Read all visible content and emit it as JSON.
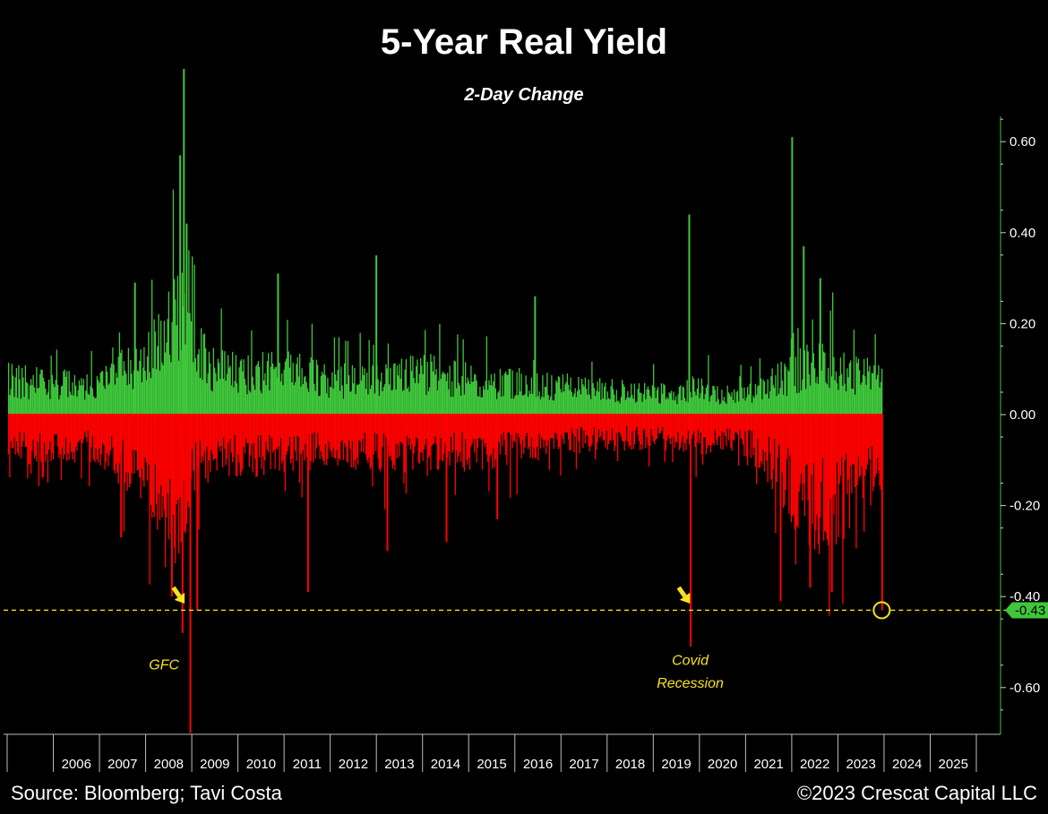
{
  "chart_data": {
    "type": "bar",
    "title": "5-Year Real Yield",
    "subtitle": "2-Day Change",
    "xlabel": "",
    "ylabel": "",
    "ylim": [
      -0.7,
      0.7
    ],
    "yticks": [
      0.6,
      0.4,
      0.2,
      0.0,
      -0.2,
      -0.4,
      -0.6
    ],
    "ytick_labels": [
      "0.60",
      "0.40",
      "0.20",
      "0.00",
      "-0.20",
      "-0.40",
      "-0.60"
    ],
    "x_range": [
      2005.0,
      2026.0
    ],
    "data_end": 2023.95,
    "categories": [
      "2006",
      "2007",
      "2008",
      "2009",
      "2010",
      "2011",
      "2012",
      "2013",
      "2014",
      "2015",
      "2016",
      "2017",
      "2018",
      "2019",
      "2020",
      "2021",
      "2022",
      "2023",
      "2024",
      "2025"
    ],
    "legend": "none",
    "grid": false,
    "colors": {
      "positive": "#3fc63b",
      "negative": "#ff0000",
      "reference": "#f7e31c",
      "axis": "#ffffff",
      "marker_flag": "#3fc63b"
    },
    "series": [
      {
        "name": "2-Day Change",
        "envelope": {
          "x": [
            2005.0,
            2006.0,
            2007.0,
            2007.5,
            2007.9,
            2008.2,
            2008.5,
            2008.75,
            2008.85,
            2009.0,
            2009.3,
            2010.0,
            2011.0,
            2012.0,
            2013.0,
            2014.0,
            2015.0,
            2016.0,
            2017.0,
            2018.0,
            2019.0,
            2019.6,
            2019.9,
            2020.0,
            2020.2,
            2020.5,
            2021.0,
            2021.3,
            2021.7,
            2022.0,
            2022.5,
            2023.0,
            2023.5,
            2023.95
          ],
          "positive_typical": [
            0.1,
            0.09,
            0.09,
            0.13,
            0.15,
            0.19,
            0.25,
            0.3,
            0.25,
            0.2,
            0.15,
            0.12,
            0.13,
            0.1,
            0.1,
            0.12,
            0.1,
            0.09,
            0.08,
            0.07,
            0.06,
            0.06,
            0.08,
            0.07,
            0.07,
            0.06,
            0.06,
            0.08,
            0.1,
            0.12,
            0.15,
            0.14,
            0.12,
            0.1
          ],
          "negative_typical": [
            -0.1,
            -0.09,
            -0.1,
            -0.14,
            -0.18,
            -0.22,
            -0.27,
            -0.3,
            -0.26,
            -0.17,
            -0.14,
            -0.12,
            -0.12,
            -0.1,
            -0.11,
            -0.12,
            -0.11,
            -0.1,
            -0.08,
            -0.07,
            -0.07,
            -0.07,
            -0.09,
            -0.08,
            -0.08,
            -0.07,
            -0.08,
            -0.12,
            -0.16,
            -0.22,
            -0.27,
            -0.25,
            -0.2,
            -0.18
          ]
        },
        "spikes": [
          {
            "x": 2008.81,
            "value": 0.76
          },
          {
            "x": 2008.73,
            "value": 0.57
          },
          {
            "x": 2008.87,
            "value": 0.42
          },
          {
            "x": 2007.75,
            "value": 0.29
          },
          {
            "x": 2010.85,
            "value": 0.31
          },
          {
            "x": 2012.98,
            "value": 0.35
          },
          {
            "x": 2016.42,
            "value": 0.26
          },
          {
            "x": 2019.76,
            "value": 0.44
          },
          {
            "x": 2021.99,
            "value": 0.61
          },
          {
            "x": 2022.24,
            "value": 0.37
          },
          {
            "x": 2022.6,
            "value": 0.3
          },
          {
            "x": 2008.95,
            "value": -0.7
          },
          {
            "x": 2008.78,
            "value": -0.48
          },
          {
            "x": 2009.1,
            "value": -0.43
          },
          {
            "x": 2008.55,
            "value": -0.4
          },
          {
            "x": 2007.45,
            "value": -0.27
          },
          {
            "x": 2011.5,
            "value": -0.39
          },
          {
            "x": 2013.22,
            "value": -0.3
          },
          {
            "x": 2015.6,
            "value": -0.23
          },
          {
            "x": 2014.5,
            "value": -0.28
          },
          {
            "x": 2019.79,
            "value": -0.51
          },
          {
            "x": 2021.74,
            "value": -0.41
          },
          {
            "x": 2022.38,
            "value": -0.38
          },
          {
            "x": 2022.85,
            "value": -0.39
          },
          {
            "x": 2023.94,
            "value": -0.43
          }
        ]
      }
    ],
    "reference_line": {
      "value": -0.43,
      "label": "-0.43"
    },
    "annotations": [
      {
        "text": "GFC",
        "x": 2008.4,
        "y": -0.56,
        "arrow_x": 2008.6,
        "arrow_y": -0.38
      },
      {
        "text": "Covid",
        "x": 2019.8,
        "y": -0.55,
        "arrow_x": 2019.55,
        "arrow_y": -0.38
      },
      {
        "text": "Recession",
        "x": 2019.8,
        "y": -0.6
      }
    ],
    "source": "Source: Bloomberg; Tavi Costa",
    "copyright": "©2023 Crescat Capital LLC"
  }
}
